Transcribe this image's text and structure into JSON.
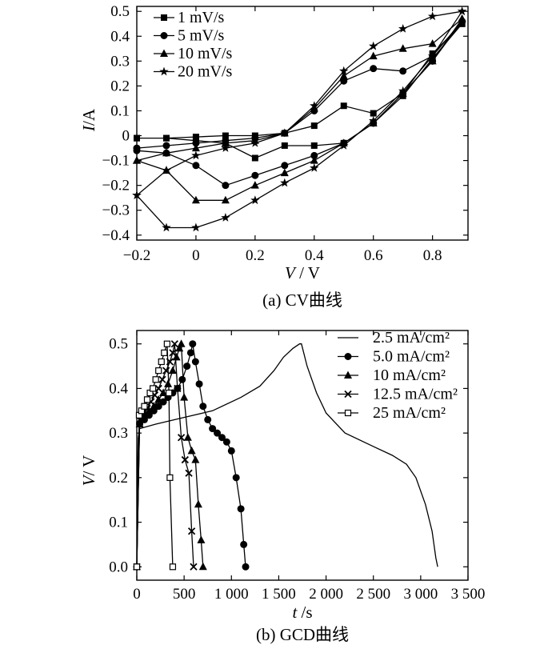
{
  "chart_data": [
    {
      "type": "line",
      "caption": "(a) CV曲线",
      "xlabel_var": "V",
      "xlabel_unit": " / V",
      "ylabel_var": "I",
      "ylabel_unit": "/A",
      "xlim": [
        -0.2,
        0.92
      ],
      "ylim": [
        -0.42,
        0.52
      ],
      "xticks": [
        -0.2,
        0,
        0.2,
        0.4,
        0.6,
        0.8
      ],
      "xtick_labels": [
        "−0.2",
        "0",
        "0.2",
        "0.4",
        "0.6",
        "0.8"
      ],
      "yticks": [
        -0.4,
        -0.3,
        -0.2,
        -0.1,
        0,
        0.1,
        0.2,
        0.3,
        0.4,
        0.5
      ],
      "ytick_labels": [
        "−0.4",
        "−0.3",
        "−0.2",
        "−0.1",
        "0",
        "0.1",
        "0.2",
        "0.3",
        "0.4",
        "0.5"
      ],
      "legend_position": "top-left",
      "series": [
        {
          "name": "1 mV/s",
          "marker": "square",
          "x": [
            -0.2,
            -0.1,
            0,
            0.1,
            0.2,
            0.3,
            0.4,
            0.5,
            0.6,
            0.7,
            0.8,
            0.9,
            0.9,
            0.8,
            0.7,
            0.6,
            0.5,
            0.4,
            0.3,
            0.2,
            0.1,
            0,
            -0.1,
            -0.2
          ],
          "y": [
            -0.01,
            -0.01,
            -0.005,
            0,
            0,
            0.01,
            0.04,
            0.12,
            0.09,
            0.17,
            0.33,
            0.45,
            0.45,
            0.31,
            0.16,
            0.05,
            -0.03,
            -0.04,
            -0.04,
            -0.09,
            -0.03,
            -0.02,
            -0.01,
            -0.01
          ]
        },
        {
          "name": "5 mV/s",
          "marker": "circle",
          "x": [
            -0.2,
            -0.1,
            0,
            0.1,
            0.2,
            0.3,
            0.4,
            0.5,
            0.6,
            0.7,
            0.8,
            0.9,
            0.9,
            0.8,
            0.7,
            0.6,
            0.5,
            0.4,
            0.3,
            0.2,
            0.1,
            0,
            -0.1,
            -0.2
          ],
          "y": [
            -0.05,
            -0.04,
            -0.03,
            -0.02,
            -0.01,
            0.01,
            0.1,
            0.22,
            0.27,
            0.26,
            0.32,
            0.46,
            0.46,
            0.3,
            0.17,
            0.05,
            -0.03,
            -0.08,
            -0.12,
            -0.16,
            -0.2,
            -0.12,
            -0.07,
            -0.06
          ]
        },
        {
          "name": "10 mV/s",
          "marker": "triangle",
          "x": [
            -0.2,
            -0.1,
            0,
            0.1,
            0.2,
            0.3,
            0.4,
            0.5,
            0.6,
            0.7,
            0.8,
            0.9,
            0.9,
            0.8,
            0.7,
            0.6,
            0.5,
            0.4,
            0.3,
            0.2,
            0.1,
            0,
            -0.1,
            -0.2
          ],
          "y": [
            -0.1,
            -0.07,
            -0.05,
            -0.03,
            -0.02,
            0.01,
            0.11,
            0.24,
            0.32,
            0.35,
            0.37,
            0.47,
            0.47,
            0.3,
            0.17,
            0.05,
            -0.03,
            -0.1,
            -0.15,
            -0.2,
            -0.26,
            -0.26,
            -0.14,
            -0.1
          ]
        },
        {
          "name": "20 mV/s",
          "marker": "star",
          "x": [
            -0.2,
            -0.1,
            0,
            0.1,
            0.2,
            0.3,
            0.4,
            0.5,
            0.6,
            0.7,
            0.8,
            0.9,
            0.9,
            0.8,
            0.7,
            0.6,
            0.5,
            0.4,
            0.3,
            0.2,
            0.1,
            0,
            -0.1,
            -0.2
          ],
          "y": [
            -0.24,
            -0.14,
            -0.08,
            -0.05,
            -0.03,
            0.01,
            0.12,
            0.26,
            0.36,
            0.43,
            0.48,
            0.5,
            0.5,
            0.32,
            0.18,
            0.06,
            -0.04,
            -0.13,
            -0.19,
            -0.26,
            -0.33,
            -0.37,
            -0.37,
            -0.24
          ]
        }
      ]
    },
    {
      "type": "line",
      "caption": "(b) GCD曲线",
      "xlabel_var": "t",
      "xlabel_unit": " /s",
      "ylabel_var": "V",
      "ylabel_unit": "/ V",
      "xlim": [
        0,
        3500
      ],
      "ylim": [
        -0.03,
        0.53
      ],
      "xticks": [
        0,
        500,
        1000,
        1500,
        2000,
        2500,
        3000,
        3500
      ],
      "xtick_labels": [
        "0",
        "500",
        "1 000",
        "1 500",
        "2 000",
        "2 500",
        "3 000",
        "3 500"
      ],
      "yticks": [
        0,
        0.1,
        0.2,
        0.3,
        0.4,
        0.5
      ],
      "ytick_labels": [
        "0.0",
        "0.1",
        "0.2",
        "0.3",
        "0.4",
        "0.5"
      ],
      "legend_position": "top-right",
      "series": [
        {
          "name": "2.5 mA/cm²",
          "marker": "none",
          "x": [
            0,
            5,
            15,
            30,
            200,
            500,
            800,
            1100,
            1300,
            1450,
            1550,
            1650,
            1720,
            1740,
            1800,
            1900,
            2000,
            2200,
            2500,
            2700,
            2850,
            2950,
            3050,
            3120,
            3160,
            3180
          ],
          "y": [
            0.0,
            0.2,
            0.29,
            0.31,
            0.32,
            0.335,
            0.35,
            0.38,
            0.405,
            0.44,
            0.47,
            0.49,
            0.5,
            0.5,
            0.45,
            0.39,
            0.345,
            0.3,
            0.27,
            0.25,
            0.23,
            0.2,
            0.14,
            0.08,
            0.02,
            0.0
          ]
        },
        {
          "name": "5.0 mA/cm²",
          "marker": "circle",
          "x": [
            0,
            30,
            80,
            130,
            180,
            230,
            280,
            330,
            380,
            430,
            480,
            530,
            570,
            590,
            620,
            660,
            700,
            750,
            800,
            850,
            900,
            950,
            1000,
            1050,
            1100,
            1130,
            1150
          ],
          "y": [
            0.0,
            0.32,
            0.33,
            0.34,
            0.35,
            0.36,
            0.37,
            0.38,
            0.39,
            0.4,
            0.42,
            0.45,
            0.48,
            0.5,
            0.46,
            0.41,
            0.36,
            0.33,
            0.31,
            0.3,
            0.29,
            0.28,
            0.26,
            0.2,
            0.13,
            0.05,
            0.0
          ]
        },
        {
          "name": "10 mA/cm²",
          "marker": "triangle",
          "x": [
            0,
            30,
            80,
            130,
            180,
            230,
            280,
            330,
            380,
            420,
            450,
            470,
            500,
            540,
            580,
            620,
            650,
            680,
            700
          ],
          "y": [
            0.0,
            0.32,
            0.34,
            0.35,
            0.36,
            0.375,
            0.39,
            0.41,
            0.44,
            0.47,
            0.49,
            0.5,
            0.38,
            0.29,
            0.26,
            0.24,
            0.14,
            0.06,
            0.0
          ]
        },
        {
          "name": "12.5 mA/cm²",
          "marker": "x",
          "x": [
            0,
            30,
            70,
            110,
            150,
            190,
            230,
            270,
            310,
            350,
            380,
            400,
            430,
            470,
            510,
            550,
            580,
            600
          ],
          "y": [
            0.0,
            0.33,
            0.34,
            0.355,
            0.37,
            0.385,
            0.4,
            0.42,
            0.44,
            0.46,
            0.48,
            0.5,
            0.4,
            0.29,
            0.24,
            0.21,
            0.08,
            0.0
          ]
        },
        {
          "name": "25 mA/cm²",
          "marker": "square",
          "x": [
            0,
            25,
            50,
            80,
            110,
            140,
            170,
            200,
            230,
            260,
            290,
            320,
            340,
            350,
            380
          ],
          "y": [
            0.0,
            0.34,
            0.35,
            0.36,
            0.375,
            0.39,
            0.4,
            0.42,
            0.44,
            0.46,
            0.48,
            0.5,
            0.39,
            0.2,
            0.0
          ]
        }
      ]
    }
  ]
}
